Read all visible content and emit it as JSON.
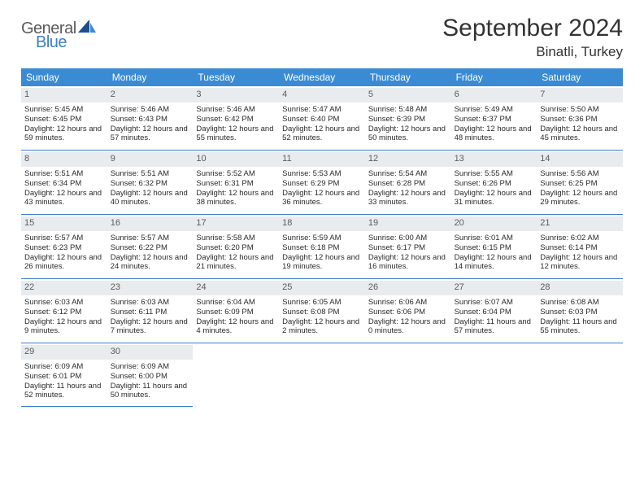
{
  "logo": {
    "general": "General",
    "blue": "Blue"
  },
  "title": "September 2024",
  "location": "Binatli, Turkey",
  "colors": {
    "header_bg": "#3b8bd4",
    "border": "#3b7fc4",
    "daynum_bg": "#e9ecef",
    "text": "#2a2a2a",
    "text_muted": "#5a5a5a",
    "logo_blue": "#3b7fc4",
    "logo_dark": "#1f4e8c"
  },
  "day_names": [
    "Sunday",
    "Monday",
    "Tuesday",
    "Wednesday",
    "Thursday",
    "Friday",
    "Saturday"
  ],
  "weeks": [
    [
      {
        "n": "1",
        "sr": "5:45 AM",
        "ss": "6:45 PM",
        "dl": "12 hours and 59 minutes."
      },
      {
        "n": "2",
        "sr": "5:46 AM",
        "ss": "6:43 PM",
        "dl": "12 hours and 57 minutes."
      },
      {
        "n": "3",
        "sr": "5:46 AM",
        "ss": "6:42 PM",
        "dl": "12 hours and 55 minutes."
      },
      {
        "n": "4",
        "sr": "5:47 AM",
        "ss": "6:40 PM",
        "dl": "12 hours and 52 minutes."
      },
      {
        "n": "5",
        "sr": "5:48 AM",
        "ss": "6:39 PM",
        "dl": "12 hours and 50 minutes."
      },
      {
        "n": "6",
        "sr": "5:49 AM",
        "ss": "6:37 PM",
        "dl": "12 hours and 48 minutes."
      },
      {
        "n": "7",
        "sr": "5:50 AM",
        "ss": "6:36 PM",
        "dl": "12 hours and 45 minutes."
      }
    ],
    [
      {
        "n": "8",
        "sr": "5:51 AM",
        "ss": "6:34 PM",
        "dl": "12 hours and 43 minutes."
      },
      {
        "n": "9",
        "sr": "5:51 AM",
        "ss": "6:32 PM",
        "dl": "12 hours and 40 minutes."
      },
      {
        "n": "10",
        "sr": "5:52 AM",
        "ss": "6:31 PM",
        "dl": "12 hours and 38 minutes."
      },
      {
        "n": "11",
        "sr": "5:53 AM",
        "ss": "6:29 PM",
        "dl": "12 hours and 36 minutes."
      },
      {
        "n": "12",
        "sr": "5:54 AM",
        "ss": "6:28 PM",
        "dl": "12 hours and 33 minutes."
      },
      {
        "n": "13",
        "sr": "5:55 AM",
        "ss": "6:26 PM",
        "dl": "12 hours and 31 minutes."
      },
      {
        "n": "14",
        "sr": "5:56 AM",
        "ss": "6:25 PM",
        "dl": "12 hours and 29 minutes."
      }
    ],
    [
      {
        "n": "15",
        "sr": "5:57 AM",
        "ss": "6:23 PM",
        "dl": "12 hours and 26 minutes."
      },
      {
        "n": "16",
        "sr": "5:57 AM",
        "ss": "6:22 PM",
        "dl": "12 hours and 24 minutes."
      },
      {
        "n": "17",
        "sr": "5:58 AM",
        "ss": "6:20 PM",
        "dl": "12 hours and 21 minutes."
      },
      {
        "n": "18",
        "sr": "5:59 AM",
        "ss": "6:18 PM",
        "dl": "12 hours and 19 minutes."
      },
      {
        "n": "19",
        "sr": "6:00 AM",
        "ss": "6:17 PM",
        "dl": "12 hours and 16 minutes."
      },
      {
        "n": "20",
        "sr": "6:01 AM",
        "ss": "6:15 PM",
        "dl": "12 hours and 14 minutes."
      },
      {
        "n": "21",
        "sr": "6:02 AM",
        "ss": "6:14 PM",
        "dl": "12 hours and 12 minutes."
      }
    ],
    [
      {
        "n": "22",
        "sr": "6:03 AM",
        "ss": "6:12 PM",
        "dl": "12 hours and 9 minutes."
      },
      {
        "n": "23",
        "sr": "6:03 AM",
        "ss": "6:11 PM",
        "dl": "12 hours and 7 minutes."
      },
      {
        "n": "24",
        "sr": "6:04 AM",
        "ss": "6:09 PM",
        "dl": "12 hours and 4 minutes."
      },
      {
        "n": "25",
        "sr": "6:05 AM",
        "ss": "6:08 PM",
        "dl": "12 hours and 2 minutes."
      },
      {
        "n": "26",
        "sr": "6:06 AM",
        "ss": "6:06 PM",
        "dl": "12 hours and 0 minutes."
      },
      {
        "n": "27",
        "sr": "6:07 AM",
        "ss": "6:04 PM",
        "dl": "11 hours and 57 minutes."
      },
      {
        "n": "28",
        "sr": "6:08 AM",
        "ss": "6:03 PM",
        "dl": "11 hours and 55 minutes."
      }
    ],
    [
      {
        "n": "29",
        "sr": "6:09 AM",
        "ss": "6:01 PM",
        "dl": "11 hours and 52 minutes."
      },
      {
        "n": "30",
        "sr": "6:09 AM",
        "ss": "6:00 PM",
        "dl": "11 hours and 50 minutes."
      },
      null,
      null,
      null,
      null,
      null
    ]
  ],
  "labels": {
    "sunrise": "Sunrise:",
    "sunset": "Sunset:",
    "daylight": "Daylight:"
  }
}
